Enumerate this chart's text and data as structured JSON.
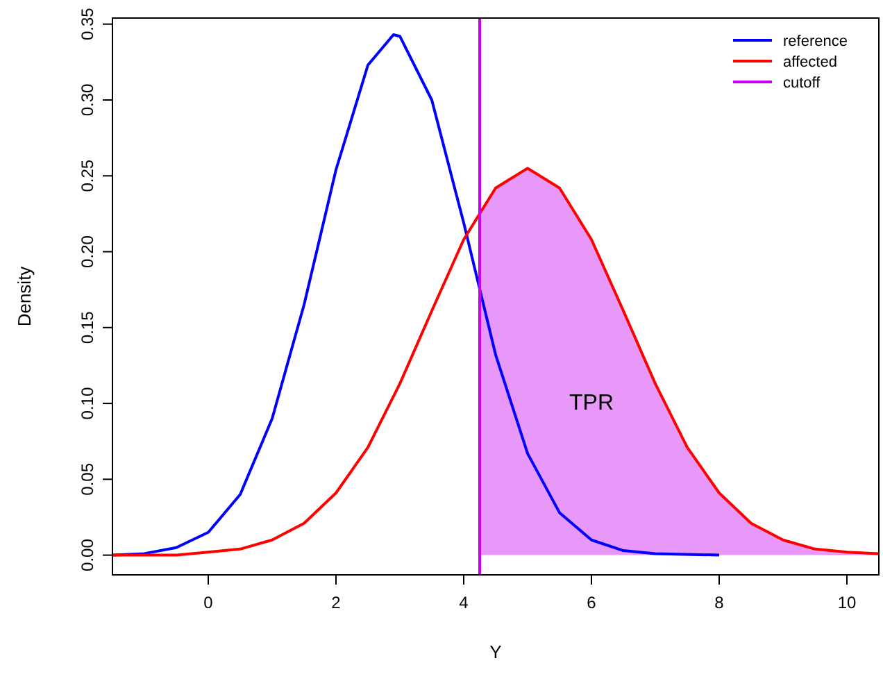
{
  "chart_data": {
    "type": "line",
    "xlabel": "Y",
    "ylabel": "Density",
    "xlim": [
      -1.5,
      10.5
    ],
    "ylim": [
      -0.013,
      0.354
    ],
    "xticks": [
      0,
      2,
      4,
      6,
      8,
      10
    ],
    "yticks": [
      {
        "value": 0,
        "label": "0.00"
      },
      {
        "value": 0.05,
        "label": "0.05"
      },
      {
        "value": 0.1,
        "label": "0.10"
      },
      {
        "value": 0.15,
        "label": "0.15"
      },
      {
        "value": 0.2,
        "label": "0.20"
      },
      {
        "value": 0.25,
        "label": "0.25"
      },
      {
        "value": 0.3,
        "label": "0.30"
      },
      {
        "value": 0.35,
        "label": "0.35"
      }
    ],
    "grid": false,
    "legend": "top right",
    "series": [
      {
        "type": "area",
        "color": "#e898f8",
        "x": [
          4.25,
          4.5,
          5,
          5.5,
          6,
          6.5,
          7,
          7.5,
          8,
          8.5,
          9,
          9.5,
          10,
          10.5
        ],
        "values": [
          0.227,
          0.242,
          0.255,
          0.242,
          0.208,
          0.161,
          0.113,
          0.071,
          0.041,
          0.021,
          0.01,
          0.004,
          0.002,
          0.001
        ]
      },
      {
        "name": "reference",
        "color": "#0000ff",
        "x": [
          -1.5,
          -1,
          -0.5,
          0,
          0.5,
          1,
          1.5,
          2,
          2.5,
          2.9,
          3,
          3.5,
          4,
          4.5,
          5,
          5.5,
          6,
          6.5,
          7,
          8
        ],
        "values": [
          0,
          0.001,
          0.005,
          0.015,
          0.04,
          0.09,
          0.165,
          0.254,
          0.323,
          0.343,
          0.342,
          0.3,
          0.219,
          0.132,
          0.067,
          0.028,
          0.01,
          0.003,
          0.001,
          0
        ]
      },
      {
        "name": "affected",
        "color": "#ff0000",
        "x": [
          -1.5,
          -1,
          -0.5,
          0,
          0.5,
          1,
          1.5,
          2,
          2.5,
          3,
          3.5,
          4,
          4.5,
          5,
          5.5,
          6,
          6.5,
          7,
          7.5,
          8,
          8.5,
          9,
          9.5,
          10,
          10.5
        ],
        "values": [
          0,
          0,
          0,
          0.002,
          0.004,
          0.01,
          0.021,
          0.041,
          0.071,
          0.113,
          0.161,
          0.208,
          0.242,
          0.255,
          0.242,
          0.208,
          0.161,
          0.113,
          0.071,
          0.041,
          0.021,
          0.01,
          0.004,
          0.002,
          0.001
        ]
      },
      {
        "name": "cutoff",
        "color": "#cc00ee",
        "x": [
          4.25,
          4.25
        ],
        "values": [
          -0.013,
          0.354
        ]
      }
    ],
    "annotations": [
      "TPR"
    ]
  }
}
